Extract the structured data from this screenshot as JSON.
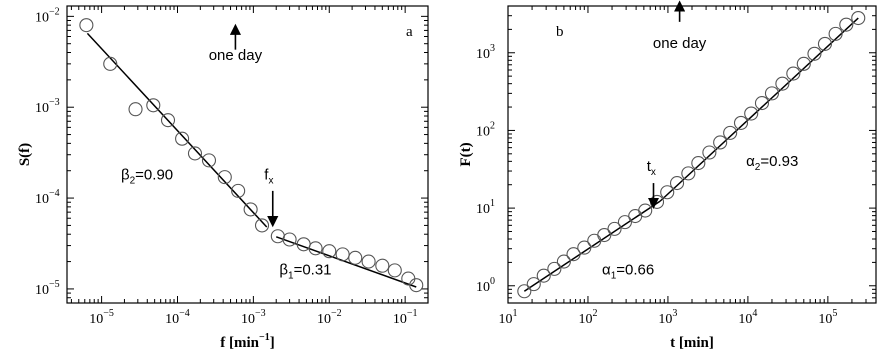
{
  "chart_data": [
    {
      "type": "scatter",
      "panel_label": "a",
      "xlabel_main": "f [min",
      "xlabel_exp": "−1",
      "xlabel_close": "]",
      "ylabel": "S(f)",
      "x_scale": "log",
      "y_scale": "log",
      "xlim": [
        3.5e-06,
        0.2
      ],
      "ylim": [
        7e-06,
        0.013
      ],
      "x_ticks": [
        {
          "value": 1e-05,
          "base": "10",
          "exp": "−5"
        },
        {
          "value": 0.0001,
          "base": "10",
          "exp": "−4"
        },
        {
          "value": 0.001,
          "base": "10",
          "exp": "−3"
        },
        {
          "value": 0.01,
          "base": "10",
          "exp": "−2"
        },
        {
          "value": 0.1,
          "base": "10",
          "exp": "−1"
        }
      ],
      "y_ticks": [
        {
          "value": 1e-05,
          "base": "10",
          "exp": "−5"
        },
        {
          "value": 0.0001,
          "base": "10",
          "exp": "−4"
        },
        {
          "value": 0.001,
          "base": "10",
          "exp": "−3"
        },
        {
          "value": 0.01,
          "base": "10",
          "exp": "−2"
        }
      ],
      "points": [
        {
          "x": 6.3e-06,
          "y": 0.008
        },
        {
          "x": 1.3e-05,
          "y": 0.003
        },
        {
          "x": 2.8e-05,
          "y": 0.00095
        },
        {
          "x": 4.8e-05,
          "y": 0.00105
        },
        {
          "x": 7.5e-05,
          "y": 0.00072
        },
        {
          "x": 0.000115,
          "y": 0.00045
        },
        {
          "x": 0.00017,
          "y": 0.00031
        },
        {
          "x": 0.00026,
          "y": 0.00026
        },
        {
          "x": 0.00042,
          "y": 0.00017
        },
        {
          "x": 0.00063,
          "y": 0.00012
        },
        {
          "x": 0.00092,
          "y": 7.5e-05
        },
        {
          "x": 0.0013,
          "y": 5e-05
        },
        {
          "x": 0.0021,
          "y": 3.8e-05
        },
        {
          "x": 0.003,
          "y": 3.5e-05
        },
        {
          "x": 0.0046,
          "y": 3.1e-05
        },
        {
          "x": 0.0066,
          "y": 2.8e-05
        },
        {
          "x": 0.01,
          "y": 2.6e-05
        },
        {
          "x": 0.015,
          "y": 2.4e-05
        },
        {
          "x": 0.022,
          "y": 2.2e-05
        },
        {
          "x": 0.033,
          "y": 2e-05
        },
        {
          "x": 0.05,
          "y": 1.8e-05
        },
        {
          "x": 0.073,
          "y": 1.6e-05
        },
        {
          "x": 0.11,
          "y": 1.3e-05
        },
        {
          "x": 0.14,
          "y": 1.1e-05
        }
      ],
      "fit_lines": [
        {
          "x": [
            6.5e-06,
            0.0015
          ],
          "y": [
            0.0065,
            4.8e-05
          ]
        },
        {
          "x": [
            0.002,
            0.14
          ],
          "y": [
            3.75e-05,
            1.05e-05
          ]
        }
      ],
      "annotations": [
        {
          "id": "beta2",
          "sym": "β",
          "sub": "2",
          "rest": "=0.90",
          "x": 1.8e-05,
          "y": 0.00016
        },
        {
          "id": "beta1",
          "sym": "β",
          "sub": "1",
          "rest": "=0.31",
          "x": 0.0022,
          "y": 1.45e-05
        },
        {
          "id": "fx",
          "sym": "f",
          "sub": "x",
          "rest": "",
          "x": 0.0016,
          "y": 0.00016
        }
      ],
      "arrows": [
        {
          "id": "fx-arrow",
          "x": 0.0018,
          "y_from": 0.00012,
          "y_to": 5.5e-05,
          "direction": "down"
        },
        {
          "id": "oneday-arrow",
          "x": 0.00058,
          "y_from": 0.0043,
          "y_to": 0.0072,
          "direction": "up"
        }
      ],
      "one_day_label": {
        "text": "one day",
        "x": 0.00058,
        "y": 0.0033
      }
    },
    {
      "type": "scatter",
      "panel_label": "b",
      "xlabel_main": "t [min]",
      "ylabel": "F(t)",
      "x_scale": "log",
      "y_scale": "log",
      "xlim": [
        10,
        400000
      ],
      "ylim": [
        0.6,
        4000
      ],
      "x_ticks": [
        {
          "value": 10,
          "base": "10",
          "exp": "1"
        },
        {
          "value": 100,
          "base": "10",
          "exp": "2"
        },
        {
          "value": 1000,
          "base": "10",
          "exp": "3"
        },
        {
          "value": 10000,
          "base": "10",
          "exp": "4"
        },
        {
          "value": 100000,
          "base": "10",
          "exp": "5"
        }
      ],
      "y_ticks": [
        {
          "value": 1,
          "base": "10",
          "exp": "0"
        },
        {
          "value": 10,
          "base": "10",
          "exp": "1"
        },
        {
          "value": 100,
          "base": "10",
          "exp": "2"
        },
        {
          "value": 1000,
          "base": "10",
          "exp": "3"
        }
      ],
      "points": [
        {
          "x": 16,
          "y": 0.85
        },
        {
          "x": 21,
          "y": 1.05
        },
        {
          "x": 28,
          "y": 1.35
        },
        {
          "x": 38,
          "y": 1.65
        },
        {
          "x": 50,
          "y": 2.05
        },
        {
          "x": 66,
          "y": 2.55
        },
        {
          "x": 90,
          "y": 3.1
        },
        {
          "x": 120,
          "y": 3.8
        },
        {
          "x": 160,
          "y": 4.5
        },
        {
          "x": 215,
          "y": 5.4
        },
        {
          "x": 290,
          "y": 6.6
        },
        {
          "x": 390,
          "y": 7.9
        },
        {
          "x": 520,
          "y": 9.3
        },
        {
          "x": 730,
          "y": 12
        },
        {
          "x": 980,
          "y": 16
        },
        {
          "x": 1300,
          "y": 21
        },
        {
          "x": 1800,
          "y": 28
        },
        {
          "x": 2400,
          "y": 38
        },
        {
          "x": 3300,
          "y": 52
        },
        {
          "x": 4500,
          "y": 70
        },
        {
          "x": 6000,
          "y": 93
        },
        {
          "x": 8200,
          "y": 125
        },
        {
          "x": 11000,
          "y": 165
        },
        {
          "x": 15000,
          "y": 225
        },
        {
          "x": 20000,
          "y": 300
        },
        {
          "x": 27000,
          "y": 400
        },
        {
          "x": 37000,
          "y": 540
        },
        {
          "x": 50000,
          "y": 720
        },
        {
          "x": 68000,
          "y": 970
        },
        {
          "x": 92000,
          "y": 1300
        },
        {
          "x": 125000,
          "y": 1750
        },
        {
          "x": 170000,
          "y": 2300
        },
        {
          "x": 240000,
          "y": 2800
        }
      ],
      "fit_lines": [
        {
          "x": [
            16,
            800
          ],
          "y": [
            0.85,
            12.3
          ]
        },
        {
          "x": [
            800,
            240000
          ],
          "y": [
            12.3,
            2800
          ]
        }
      ],
      "annotations": [
        {
          "id": "alpha2",
          "sym": "α",
          "sub": "2",
          "rest": "=0.93",
          "x": 9500,
          "y": 35
        },
        {
          "id": "alpha1",
          "sym": "α",
          "sub": "1",
          "rest": "=0.66",
          "x": 150,
          "y": 1.4
        },
        {
          "id": "tx",
          "sym": "t",
          "sub": "x",
          "rest": "",
          "x": 620,
          "y": 30
        }
      ],
      "arrows": [
        {
          "id": "tx-arrow",
          "x": 660,
          "y_from": 21,
          "y_to": 11.5,
          "direction": "down"
        },
        {
          "id": "oneday-arrow",
          "x": 1400,
          "y_from": 2500,
          "y_to": 4000,
          "direction": "up"
        }
      ],
      "one_day_label": {
        "text": "one day",
        "x": 1400,
        "y": 1150
      }
    }
  ]
}
